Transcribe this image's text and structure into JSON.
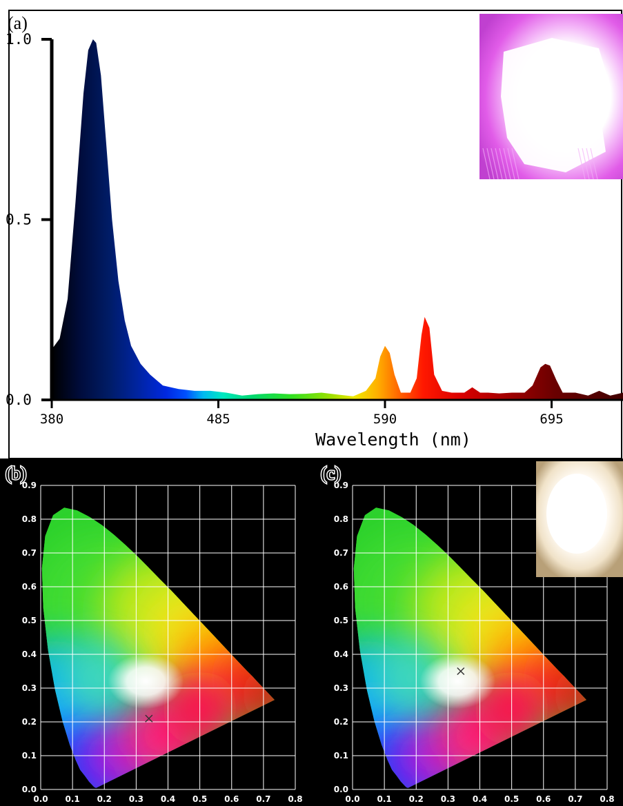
{
  "panels": {
    "a": "(a)",
    "b": "(b)",
    "c": "(c)"
  },
  "chart_data": [
    {
      "type": "area",
      "panel": "(a)",
      "title": "",
      "xlabel": "Wavelength (nm)",
      "ylabel": "",
      "xlim": [
        380,
        740
      ],
      "ylim": [
        0,
        1
      ],
      "xticks": [
        "380",
        "485",
        "590",
        "695"
      ],
      "xtick_values": [
        380,
        485,
        590,
        695
      ],
      "yticks": [
        "0.0",
        "0.5",
        "1.0"
      ],
      "ytick_values": [
        0,
        0.5,
        1.0
      ],
      "fill": "spectral-colormap",
      "series": [
        {
          "x": [
            380,
            385,
            390,
            395,
            400,
            403,
            406,
            408,
            411,
            414,
            418,
            422,
            426,
            430,
            436,
            442,
            450,
            460,
            470,
            480,
            490,
            500,
            510,
            520,
            530,
            540,
            550,
            560,
            570,
            578,
            584,
            587,
            590,
            593,
            596,
            600,
            606,
            610,
            613,
            615,
            618,
            621,
            626,
            632,
            640,
            645,
            650,
            655,
            662,
            670,
            678,
            683,
            688,
            691,
            694,
            698,
            702,
            710,
            718,
            725,
            732,
            740
          ],
          "y": [
            0.14,
            0.17,
            0.28,
            0.55,
            0.85,
            0.97,
            1.0,
            0.99,
            0.9,
            0.73,
            0.5,
            0.33,
            0.22,
            0.15,
            0.1,
            0.07,
            0.04,
            0.03,
            0.025,
            0.025,
            0.02,
            0.012,
            0.016,
            0.018,
            0.016,
            0.017,
            0.02,
            0.015,
            0.01,
            0.025,
            0.06,
            0.12,
            0.15,
            0.13,
            0.07,
            0.02,
            0.02,
            0.06,
            0.18,
            0.23,
            0.2,
            0.07,
            0.025,
            0.02,
            0.02,
            0.035,
            0.02,
            0.02,
            0.018,
            0.02,
            0.02,
            0.04,
            0.09,
            0.1,
            0.095,
            0.055,
            0.02,
            0.02,
            0.012,
            0.025,
            0.012,
            0.02
          ]
        }
      ],
      "inset": "purple-glowing-sample-photo"
    },
    {
      "type": "scatter",
      "panel": "(b)",
      "title": "",
      "xlabel": "",
      "ylabel": "",
      "xlim": [
        0,
        0.8
      ],
      "ylim": [
        0,
        0.9
      ],
      "xticks": [
        "0.0",
        "0.1",
        "0.2",
        "0.3",
        "0.4",
        "0.5",
        "0.6",
        "0.7",
        "0.8"
      ],
      "yticks": [
        "0.0",
        "0.1",
        "0.2",
        "0.3",
        "0.4",
        "0.5",
        "0.6",
        "0.7",
        "0.8",
        "0.9"
      ],
      "grid": true,
      "background": "cie-1931-chromaticity-diagram",
      "points": [
        {
          "x": 0.34,
          "y": 0.21,
          "marker": "x"
        }
      ]
    },
    {
      "type": "scatter",
      "panel": "(c)",
      "title": "",
      "xlabel": "",
      "ylabel": "",
      "xlim": [
        0,
        0.8
      ],
      "ylim": [
        0,
        0.9
      ],
      "xticks": [
        "0.0",
        "0.1",
        "0.2",
        "0.3",
        "0.4",
        "0.5",
        "0.6",
        "0.7",
        "0.8"
      ],
      "yticks": [
        "0.0",
        "0.1",
        "0.2",
        "0.3",
        "0.4",
        "0.5",
        "0.6",
        "0.7",
        "0.8",
        "0.9"
      ],
      "grid": true,
      "background": "cie-1931-chromaticity-diagram",
      "points": [
        {
          "x": 0.34,
          "y": 0.35,
          "marker": "x"
        }
      ],
      "inset": "white-glowing-sample-photo"
    }
  ]
}
